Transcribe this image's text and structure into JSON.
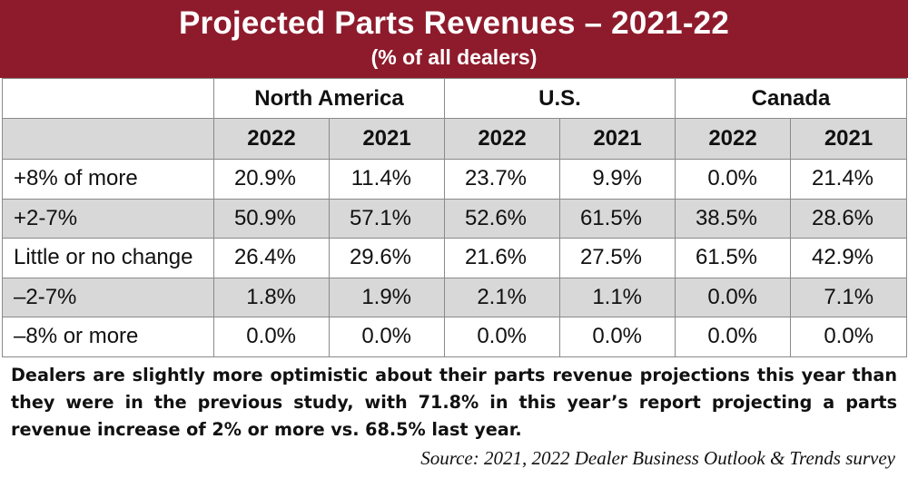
{
  "header": {
    "title": "Projected Parts Revenues – 2021-22",
    "subtitle": "(% of all dealers)"
  },
  "chart_data": {
    "type": "table",
    "title": "Projected Parts Revenues – 2021-22",
    "subtitle": "(% of all dealers)",
    "regions": [
      "North America",
      "U.S.",
      "Canada"
    ],
    "years": [
      "2022",
      "2021",
      "2022",
      "2021",
      "2022",
      "2021"
    ],
    "rows": [
      {
        "label": "+8% of more",
        "values": [
          "20.9%",
          "11.4%",
          "23.7%",
          "9.9%",
          "0.0%",
          "21.4%"
        ]
      },
      {
        "label": "+2-7%",
        "values": [
          "50.9%",
          "57.1%",
          "52.6%",
          "61.5%",
          "38.5%",
          "28.6%"
        ]
      },
      {
        "label": "Little or no change",
        "values": [
          "26.4%",
          "29.6%",
          "21.6%",
          "27.5%",
          "61.5%",
          "42.9%"
        ]
      },
      {
        "label": "–2-7%",
        "values": [
          "1.8%",
          "1.9%",
          "2.1%",
          "1.1%",
          "0.0%",
          "7.1%"
        ]
      },
      {
        "label": "–8% or more",
        "values": [
          "0.0%",
          "0.0%",
          "0.0%",
          "0.0%",
          "0.0%",
          "0.0%"
        ]
      }
    ]
  },
  "caption": "Dealers are slightly more optimistic about their parts revenue projections this year than they were in the previous study, with 71.8% in this year’s report projecting a parts revenue increase of 2% or more vs. 68.5% last year.",
  "source": "Source: 2021, 2022 Dealer Business Outlook & Trends survey",
  "colors": {
    "header_bg": "#8e1b2c",
    "shade": "#d8d8d8",
    "border": "#8a8a8a"
  }
}
